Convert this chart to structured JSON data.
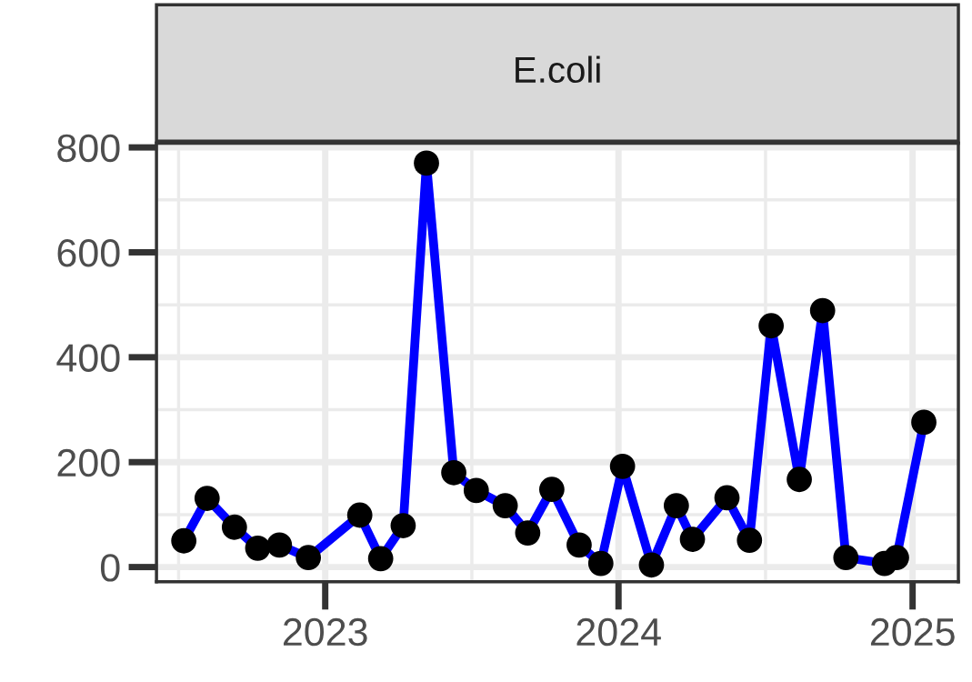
{
  "chart_data": {
    "type": "line",
    "title": "E.coli",
    "x": [
      "2022-07-09",
      "2022-08-07",
      "2022-09-10",
      "2022-10-09",
      "2022-11-05",
      "2022-12-11",
      "2023-02-13",
      "2023-03-11",
      "2023-04-08",
      "2023-05-07",
      "2023-06-10",
      "2023-07-08",
      "2023-08-13",
      "2023-09-10",
      "2023-10-10",
      "2023-11-13",
      "2023-12-10",
      "2024-01-06",
      "2024-02-11",
      "2024-03-13",
      "2024-04-02",
      "2024-05-15",
      "2024-06-12",
      "2024-07-09",
      "2024-08-13",
      "2024-09-11",
      "2024-10-10",
      "2024-11-27",
      "2024-12-12",
      "2025-01-15"
    ],
    "series": [
      {
        "color": "#0000ff",
        "values": [
          50,
          131,
          76,
          36,
          42,
          18,
          99,
          16,
          79,
          770,
          180,
          146,
          117,
          65,
          148,
          42,
          7,
          192,
          4,
          117,
          53,
          132,
          51,
          460,
          167,
          489,
          18,
          7,
          18,
          276
        ]
      }
    ],
    "marker": "circle",
    "line_style": "solid",
    "grid": true,
    "xlim": [
      "2022-06-05",
      "2025-02-27"
    ],
    "xticks": [
      {
        "value": "2023-01-01",
        "label": "2023"
      },
      {
        "value": "2024-01-01",
        "label": "2024"
      },
      {
        "value": "2025-01-01",
        "label": "2025"
      }
    ],
    "ylim": [
      -28,
      808
    ],
    "yticks": [
      0,
      200,
      400,
      600,
      800
    ]
  }
}
